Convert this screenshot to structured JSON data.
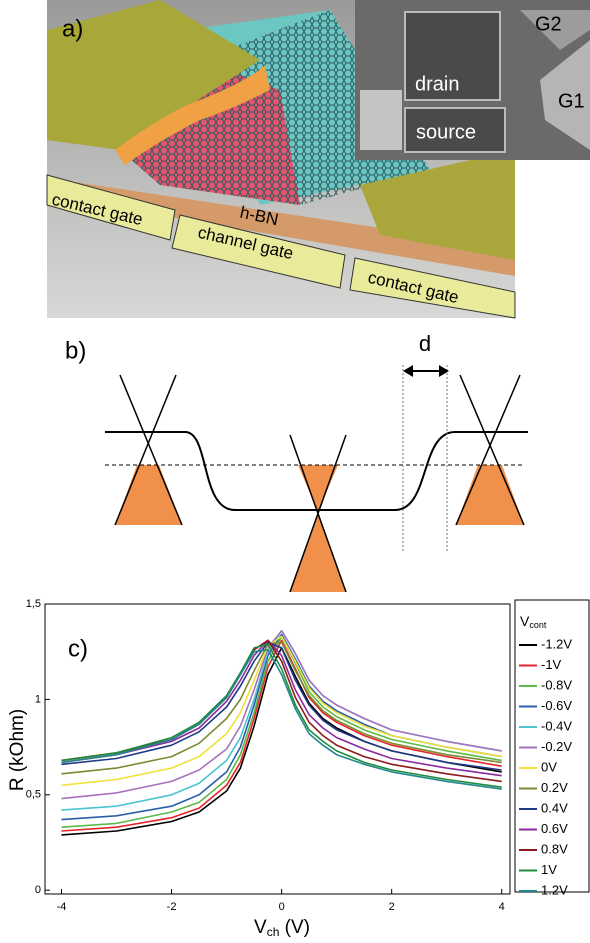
{
  "panel_a": {
    "label": "a)",
    "inset_labels": [
      "drain",
      "source",
      "G2",
      "G1"
    ],
    "device_labels": [
      "contact gate",
      "h-BN",
      "channel gate",
      "contact gate"
    ]
  },
  "panel_b": {
    "label": "b)",
    "distance_label": "d"
  },
  "chart_data": {
    "type": "line",
    "label": "c)",
    "y_label": "R (kOhm)",
    "x_label": [
      "V",
      "ch",
      " (V)"
    ],
    "legend_title": [
      "V",
      "cont"
    ],
    "legend_position": "right",
    "x": [
      -4,
      -3,
      -2,
      -1.5,
      -1,
      -0.75,
      -0.5,
      -0.25,
      0,
      0.25,
      0.5,
      0.75,
      1,
      1.5,
      2,
      3,
      4
    ],
    "xlim": [
      -4.3,
      4.15
    ],
    "ylim": [
      -0.02,
      1.5
    ],
    "xticks": [
      -4,
      -2,
      0,
      2,
      4
    ],
    "yticks": [
      0,
      {
        "value": 0.5,
        "label": "0,5"
      },
      1,
      {
        "value": 1.5,
        "label": "1,5"
      }
    ],
    "series": [
      {
        "name": "-1.2V",
        "color": "#000000",
        "values": [
          0.29,
          0.31,
          0.36,
          0.41,
          0.52,
          0.64,
          0.86,
          1.13,
          1.27,
          1.12,
          0.98,
          0.9,
          0.85,
          0.78,
          0.73,
          0.67,
          0.62
        ]
      },
      {
        "name": "-1V",
        "color": "#e4262c",
        "values": [
          0.31,
          0.33,
          0.38,
          0.43,
          0.55,
          0.67,
          0.9,
          1.17,
          1.31,
          1.16,
          1.01,
          0.93,
          0.88,
          0.81,
          0.76,
          0.7,
          0.65
        ]
      },
      {
        "name": "-0.8V",
        "color": "#5cba47",
        "values": [
          0.33,
          0.35,
          0.41,
          0.46,
          0.58,
          0.71,
          0.93,
          1.2,
          1.33,
          1.19,
          1.04,
          0.96,
          0.91,
          0.84,
          0.79,
          0.73,
          0.68
        ]
      },
      {
        "name": "-0.6V",
        "color": "#2a5ea8",
        "values": [
          0.37,
          0.39,
          0.44,
          0.5,
          0.62,
          0.75,
          0.97,
          1.23,
          1.34,
          1.21,
          1.07,
          0.99,
          0.94,
          0.87,
          0.81,
          0.75,
          0.7
        ]
      },
      {
        "name": "-0.4V",
        "color": "#4cc3d0",
        "values": [
          0.42,
          0.44,
          0.5,
          0.56,
          0.68,
          0.8,
          1.0,
          1.25,
          1.36,
          1.24,
          1.1,
          1.02,
          0.97,
          0.9,
          0.84,
          0.78,
          0.73
        ]
      },
      {
        "name": "-0.2V",
        "color": "#a672bf",
        "values": [
          0.48,
          0.51,
          0.57,
          0.63,
          0.74,
          0.86,
          1.05,
          1.27,
          1.36,
          1.24,
          1.1,
          1.02,
          0.97,
          0.9,
          0.84,
          0.78,
          0.73
        ]
      },
      {
        "name": "0V",
        "color": "#eee23a",
        "values": [
          0.55,
          0.58,
          0.64,
          0.7,
          0.82,
          0.93,
          1.1,
          1.28,
          1.33,
          1.2,
          1.06,
          0.98,
          0.93,
          0.86,
          0.81,
          0.75,
          0.7
        ]
      },
      {
        "name": "0.2V",
        "color": "#7c8a32",
        "values": [
          0.61,
          0.64,
          0.7,
          0.77,
          0.9,
          1.0,
          1.15,
          1.29,
          1.3,
          1.15,
          1.02,
          0.94,
          0.89,
          0.82,
          0.77,
          0.71,
          0.67
        ]
      },
      {
        "name": "0.4V",
        "color": "#1f3a86",
        "values": [
          0.66,
          0.69,
          0.76,
          0.83,
          0.96,
          1.07,
          1.2,
          1.3,
          1.27,
          1.1,
          0.97,
          0.89,
          0.84,
          0.78,
          0.73,
          0.67,
          0.63
        ]
      },
      {
        "name": "0.6V",
        "color": "#8a2a9e",
        "values": [
          0.67,
          0.71,
          0.78,
          0.85,
          0.99,
          1.1,
          1.23,
          1.31,
          1.23,
          1.05,
          0.92,
          0.85,
          0.8,
          0.74,
          0.69,
          0.64,
          0.6
        ]
      },
      {
        "name": "0.8V",
        "color": "#8c1c1c",
        "values": [
          0.68,
          0.72,
          0.79,
          0.87,
          1.01,
          1.13,
          1.26,
          1.31,
          1.2,
          1.01,
          0.88,
          0.81,
          0.76,
          0.7,
          0.66,
          0.61,
          0.57
        ]
      },
      {
        "name": "1V",
        "color": "#1e8c3c",
        "values": [
          0.68,
          0.72,
          0.8,
          0.88,
          1.02,
          1.14,
          1.27,
          1.29,
          1.16,
          0.97,
          0.84,
          0.78,
          0.73,
          0.67,
          0.63,
          0.58,
          0.54
        ]
      },
      {
        "name": "1.2V",
        "color": "#23878e",
        "values": [
          0.67,
          0.71,
          0.79,
          0.87,
          1.01,
          1.13,
          1.25,
          1.26,
          1.13,
          0.95,
          0.82,
          0.76,
          0.71,
          0.66,
          0.62,
          0.57,
          0.53
        ]
      }
    ]
  }
}
